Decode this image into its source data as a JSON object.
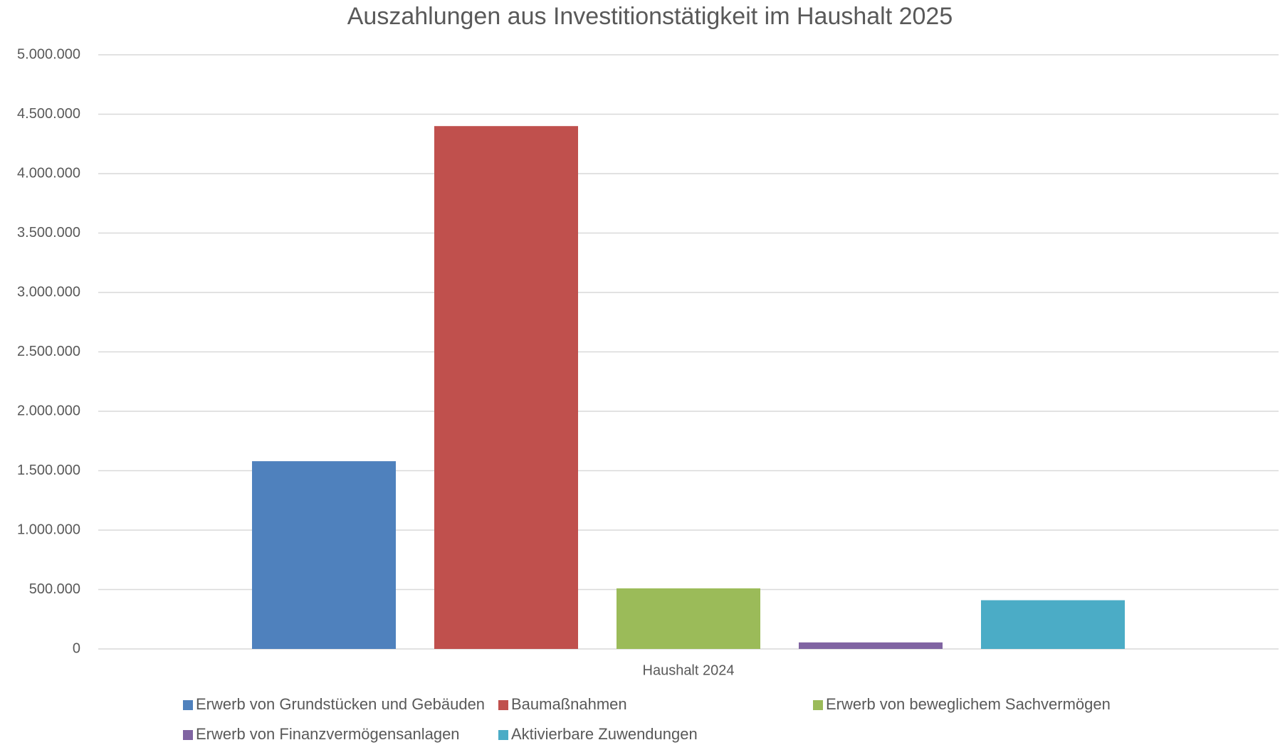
{
  "chart_data": {
    "type": "bar",
    "title": "Auszahlungen aus Investitionstätigkeit im Haushalt 2025",
    "categories": [
      "Haushalt 2024"
    ],
    "series": [
      {
        "name": "Erwerb von Grundstücken und Gebäuden",
        "color": "#4f81bd",
        "values": [
          1580000
        ]
      },
      {
        "name": "Baumaßnahmen",
        "color": "#c0504d",
        "values": [
          4400000
        ]
      },
      {
        "name": "Erwerb von beweglichem Sachvermögen",
        "color": "#9bbb59",
        "values": [
          510000
        ]
      },
      {
        "name": "Erwerb von Finanzvermögensanlagen",
        "color": "#8064a2",
        "values": [
          55000
        ]
      },
      {
        "name": "Aktivierbare Zuwendungen",
        "color": "#4bacc6",
        "values": [
          410000
        ]
      }
    ],
    "ylim": [
      0,
      5000000
    ],
    "yticks": [
      0,
      {
        "value": 500000,
        "label": "500.000"
      },
      {
        "value": 1000000,
        "label": "1.000.000"
      },
      {
        "value": 1500000,
        "label": "1.500.000"
      },
      {
        "value": 2000000,
        "label": "2.000.000"
      },
      {
        "value": 2500000,
        "label": "2.500.000"
      },
      {
        "value": 3000000,
        "label": "3.000.000"
      },
      {
        "value": 3500000,
        "label": "3.500.000"
      },
      {
        "value": 4000000,
        "label": "4.000.000"
      },
      {
        "value": 4500000,
        "label": "4.500.000"
      },
      {
        "value": 5000000,
        "label": "5.000.000"
      }
    ],
    "grid": true,
    "legend": "bottom"
  }
}
